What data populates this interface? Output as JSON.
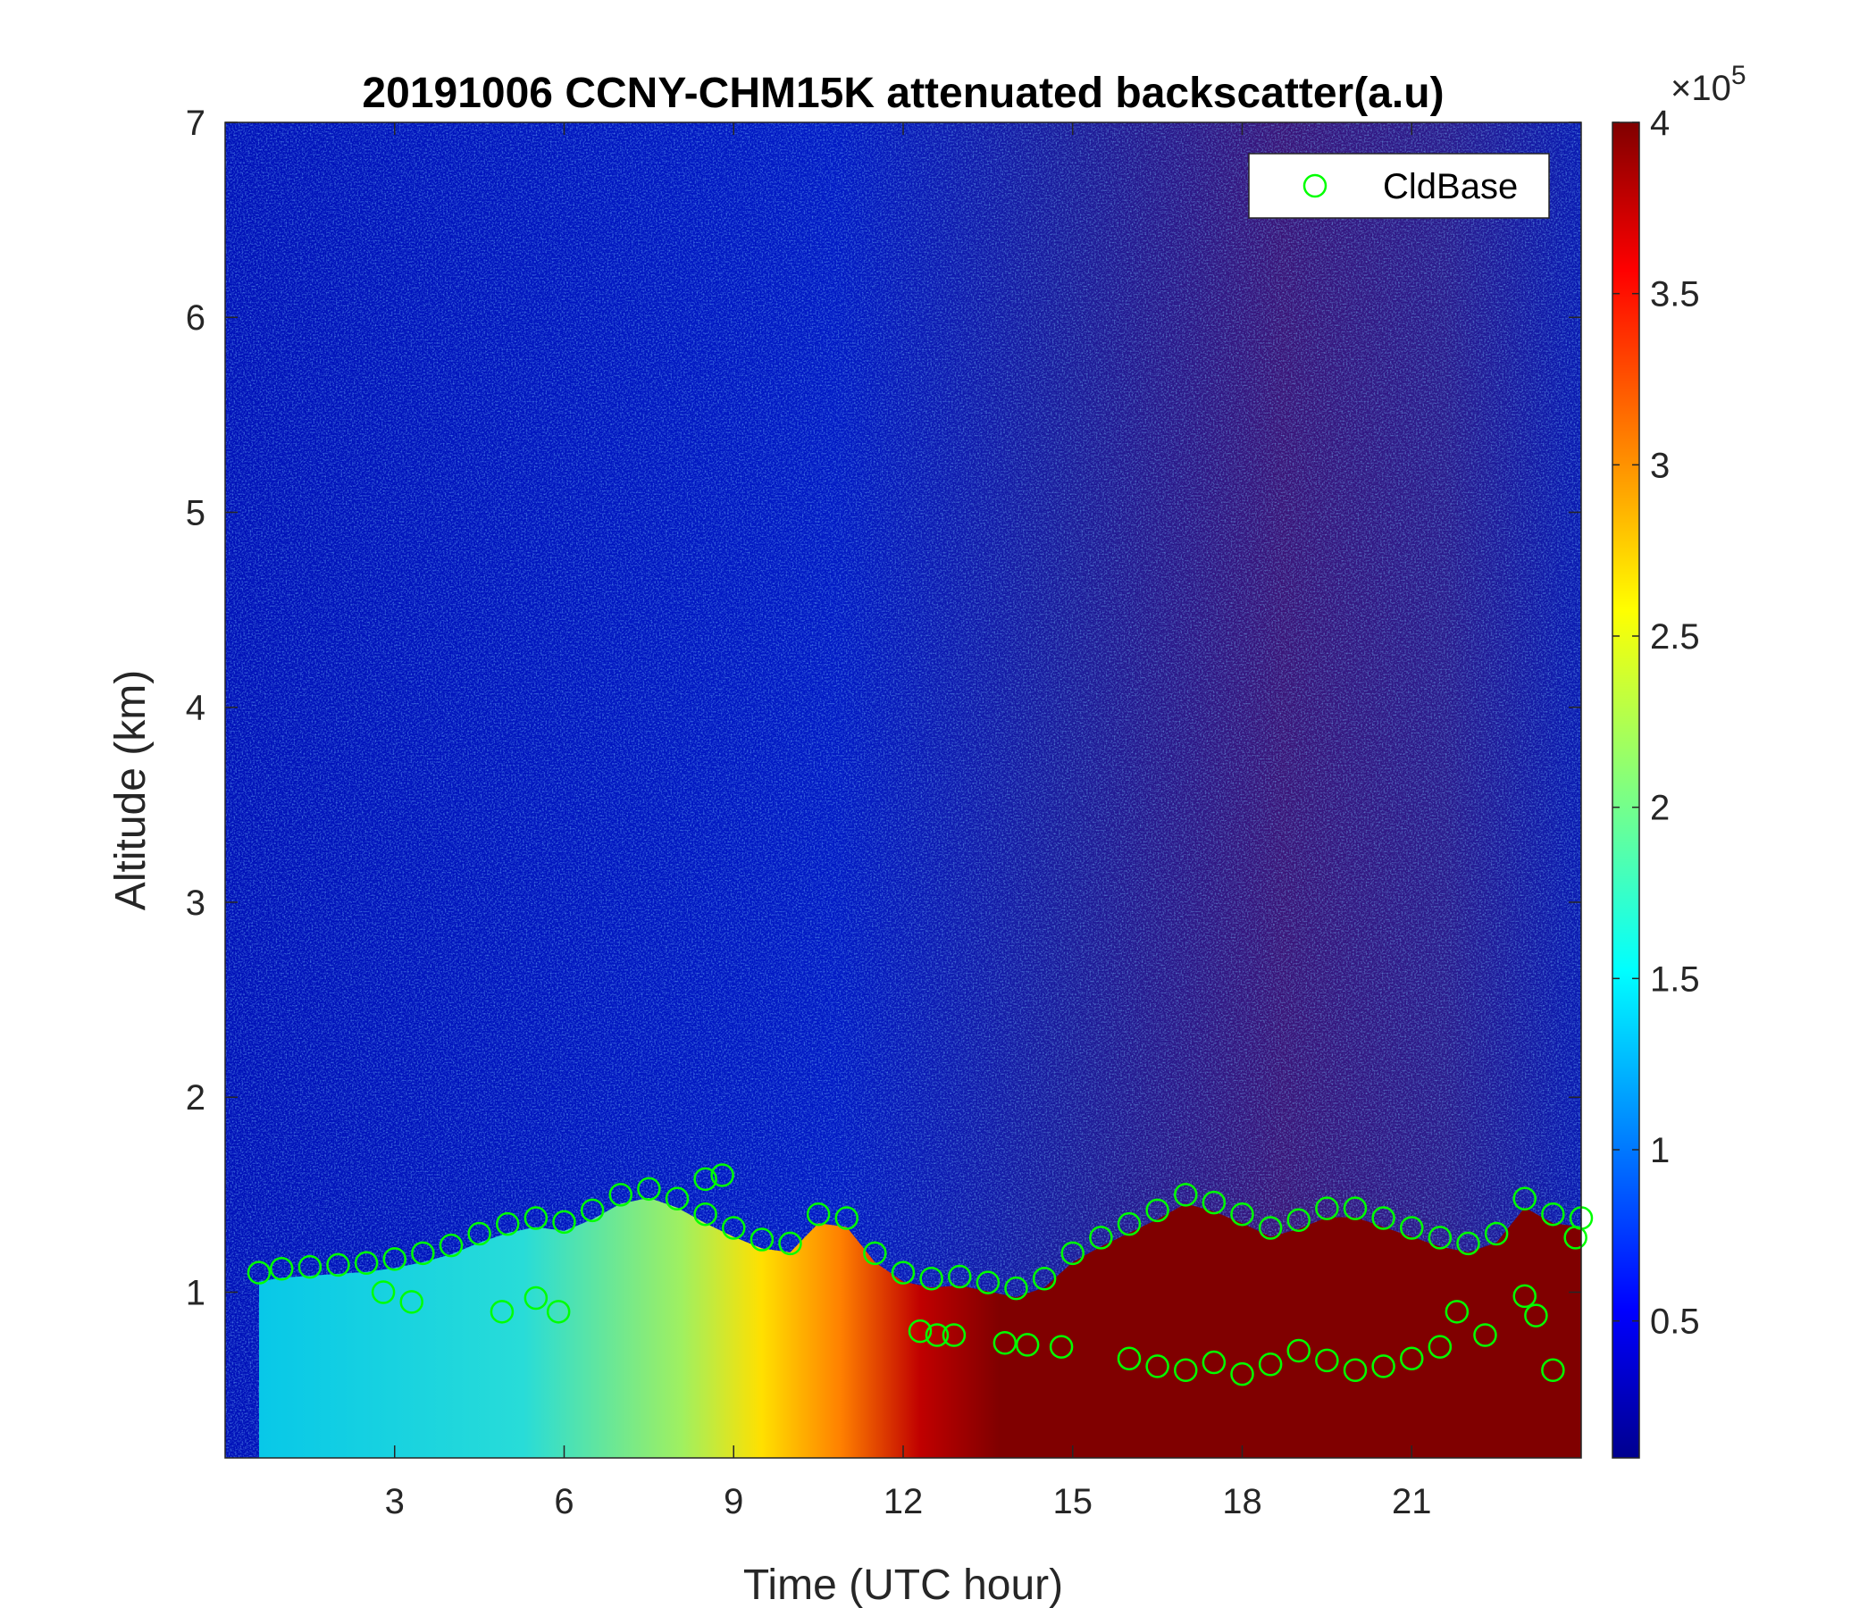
{
  "chart_data": {
    "type": "heatmap",
    "title": "20191006 CCNY-CHM15K attenuated backscatter(a.u)",
    "xlabel": "Time (UTC hour)",
    "ylabel": "Altitude (km)",
    "xlim": [
      0,
      24
    ],
    "ylim": [
      0.15,
      7
    ],
    "xticks": [
      3,
      6,
      9,
      12,
      15,
      18,
      21
    ],
    "yticks": [
      1,
      2,
      3,
      4,
      5,
      6,
      7
    ],
    "colorbar": {
      "colormap": "jet",
      "range": [
        0.1,
        4
      ],
      "ticks": [
        0.5,
        1,
        1.5,
        2,
        2.5,
        3,
        3.5,
        4
      ],
      "exponent_label": "×10",
      "exponent_power": "5"
    },
    "legend": {
      "position": "top-right",
      "entries": [
        "CldBase"
      ]
    },
    "colors": {
      "cloud_base_marker": "#00ff00"
    },
    "cloud_base": {
      "name": "CldBase",
      "marker": "circle",
      "x": [
        0.6,
        1.0,
        1.5,
        2.0,
        2.5,
        3.0,
        3.5,
        4.0,
        4.5,
        5.0,
        5.5,
        6.0,
        6.5,
        7.0,
        7.5,
        8.0,
        8.5,
        9.0,
        9.5,
        10.0,
        10.5,
        11.0,
        11.5,
        12.0,
        12.5,
        13.0,
        13.5,
        14.0,
        14.5,
        15.0,
        15.5,
        16.0,
        16.5,
        17.0,
        17.5,
        18.0,
        18.5,
        19.0,
        19.5,
        20.0,
        20.5,
        21.0,
        21.5,
        22.0,
        22.5,
        23.0,
        23.5,
        24.0
      ],
      "y": [
        1.1,
        1.12,
        1.13,
        1.14,
        1.15,
        1.17,
        1.2,
        1.24,
        1.3,
        1.35,
        1.38,
        1.36,
        1.42,
        1.5,
        1.53,
        1.48,
        1.4,
        1.33,
        1.27,
        1.25,
        1.4,
        1.38,
        1.2,
        1.1,
        1.07,
        1.08,
        1.05,
        1.02,
        1.07,
        1.2,
        1.28,
        1.35,
        1.42,
        1.5,
        1.46,
        1.4,
        1.33,
        1.37,
        1.43,
        1.43,
        1.38,
        1.33,
        1.28,
        1.25,
        1.3,
        1.48,
        1.4,
        1.38
      ]
    },
    "lower_cloud_base": {
      "x": [
        16.0,
        16.5,
        17.0,
        17.5,
        18.0,
        18.5,
        19.0,
        19.5,
        20.0,
        20.5,
        21.0,
        21.5
      ],
      "y": [
        0.66,
        0.62,
        0.6,
        0.64,
        0.58,
        0.63,
        0.7,
        0.65,
        0.6,
        0.62,
        0.66,
        0.72
      ]
    },
    "scattered_cloud_base": {
      "x": [
        2.8,
        3.3,
        4.9,
        5.5,
        5.9,
        8.5,
        8.8,
        12.3,
        12.6,
        12.9,
        13.8,
        14.2,
        14.8,
        21.8,
        22.3,
        23.0,
        23.2,
        23.5,
        23.9
      ],
      "y": [
        1.0,
        0.95,
        0.9,
        0.97,
        0.9,
        1.58,
        1.6,
        0.8,
        0.78,
        0.78,
        0.74,
        0.73,
        0.72,
        0.9,
        0.78,
        0.98,
        0.88,
        0.6,
        1.28
      ]
    }
  }
}
